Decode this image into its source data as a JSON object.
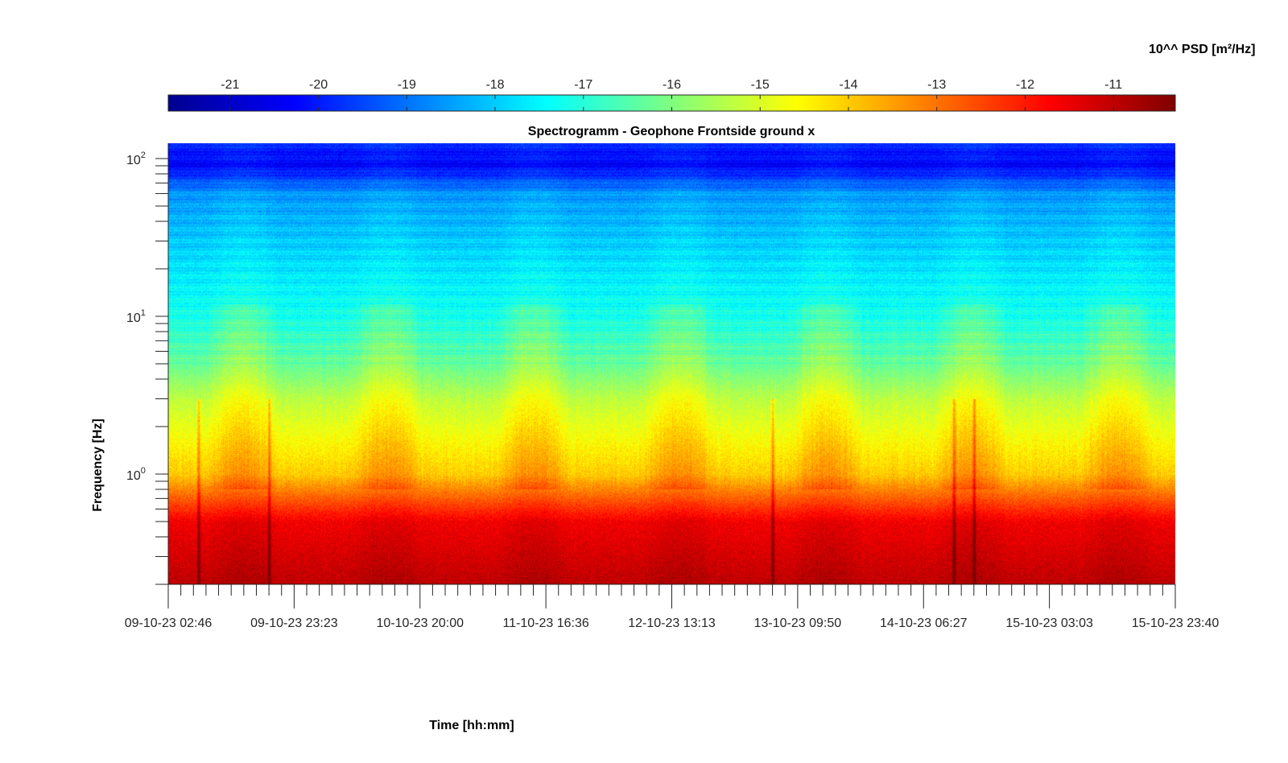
{
  "chart_data": {
    "type": "heatmap",
    "title": "Spectrogramm - Geophone Frontside ground x",
    "xlabel": "Time [hh:mm]",
    "ylabel": "Frequency [Hz]",
    "y_scale": "log",
    "ylim": [
      0.2,
      125
    ],
    "x_tick_labels": [
      "09-10-23 02:46",
      "09-10-23 23:23",
      "10-10-23 20:00",
      "11-10-23 16:36",
      "12-10-23 13:13",
      "13-10-23 09:50",
      "14-10-23 06:27",
      "15-10-23 03:03",
      "15-10-23 23:40"
    ],
    "y_ticks": [
      {
        "base": "10",
        "exp": "2",
        "value": 100
      },
      {
        "base": "10",
        "exp": "1",
        "value": 10
      },
      {
        "base": "10",
        "exp": "0",
        "value": 1
      }
    ],
    "colorbar": {
      "label": "10^^ PSD [m²/Hz]",
      "colormap": "jet",
      "range": [
        -21.7,
        -10.3
      ],
      "tick_labels": [
        "-21",
        "-20",
        "-19",
        "-18",
        "-17",
        "-16",
        "-15",
        "-14",
        "-13",
        "-12",
        "-11"
      ],
      "tick_values": [
        -21,
        -20,
        -19,
        -18,
        -17,
        -16,
        -15,
        -14,
        -13,
        -12,
        -11
      ]
    },
    "profile": {
      "description_levels_by_freq_hz": [
        [
          0.2,
          -11.0
        ],
        [
          0.5,
          -11.6
        ],
        [
          0.8,
          -13.2
        ],
        [
          1.0,
          -14.0
        ],
        [
          3.0,
          -15.3
        ],
        [
          5.0,
          -16.3
        ],
        [
          10.0,
          -17.2
        ],
        [
          30.0,
          -18.0
        ],
        [
          60.0,
          -18.6
        ],
        [
          90.0,
          -20.3
        ],
        [
          125.0,
          -19.9
        ]
      ],
      "events_time_index": [
        0.03,
        0.1,
        0.6,
        0.78,
        0.8
      ],
      "colors": {
        "high": "#7f0000",
        "low": "#00008f"
      }
    }
  }
}
